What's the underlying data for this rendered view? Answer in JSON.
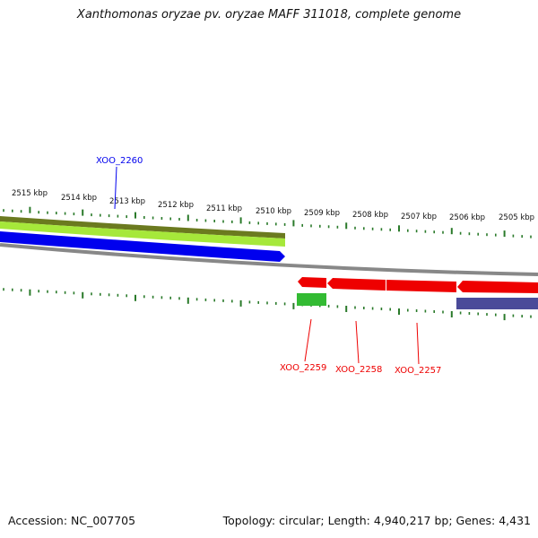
{
  "title": "Xanthomonas oryzae pv. oryzae MAFF 311018, complete genome",
  "footer": {
    "accession": "Accession: NC_007705",
    "summary": "Topology: circular; Length: 4,940,217 bp; Genes: 4,431"
  },
  "scale_labels": [
    "2515 kbp",
    "2514 kbp",
    "2513 kbp",
    "2512 kbp",
    "2511 kbp",
    "2510 kbp",
    "2509 kbp",
    "2508 kbp",
    "2507 kbp",
    "2506 kbp",
    "2505 kbp"
  ],
  "gene_labels": {
    "xoo_2260": "XOO_2260",
    "xoo_2259": "XOO_2259",
    "xoo_2258": "XOO_2258",
    "xoo_2257": "XOO_2257"
  },
  "colors": {
    "forward_gene": "#0000ee",
    "reverse_gene": "#ee0000",
    "olive_track": "#6b7a1f",
    "lime_track": "#a6e83a",
    "green_feature": "#33bb33",
    "purple_feature": "#4a4a99",
    "backbone": "#888888",
    "ticks": "#2a7a2a"
  }
}
